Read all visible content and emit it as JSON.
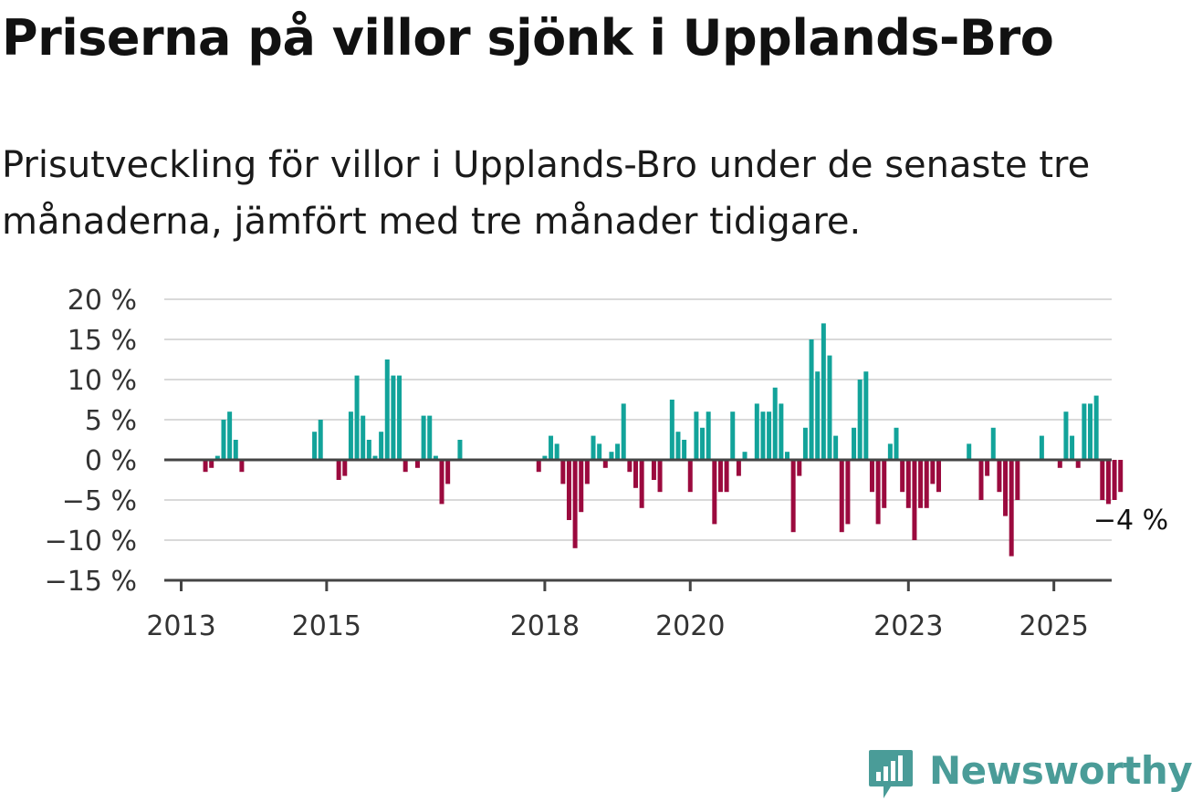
{
  "title": "Priserna på villor sjönk i Upplands-Bro",
  "subtitle": "Prisutveckling för villor i Upplands-Bro under de senaste tre månaderna, jämfört med tre månader tidigare.",
  "brand": {
    "name": "Newsworthy",
    "icon": "newsworthy-logo-icon"
  },
  "colors": {
    "positive": "#12a39a",
    "negative": "#9b0a3e",
    "grid": "#d9d9d9",
    "axis": "#444444"
  },
  "chart_data": {
    "type": "bar",
    "x_start": "2013-01",
    "frequency": "monthly",
    "ylim": [
      -15,
      20
    ],
    "yticks": [
      -15,
      -10,
      -5,
      0,
      5,
      10,
      15,
      20
    ],
    "ytick_labels": [
      "−15 %",
      "−10 %",
      "−5 %",
      "0 %",
      "5 %",
      "10 %",
      "15 %",
      "20 %"
    ],
    "xtick_labels": [
      {
        "x": "2013-01",
        "label": "2013"
      },
      {
        "x": "2015-01",
        "label": "2015"
      },
      {
        "x": "2018-01",
        "label": "2018"
      },
      {
        "x": "2020-01",
        "label": "2020"
      },
      {
        "x": "2023-01",
        "label": "2023"
      },
      {
        "x": "2025-01",
        "label": "2025"
      }
    ],
    "grid": true,
    "legend": "none",
    "end_label": "−4 %",
    "values": [
      null,
      null,
      null,
      null,
      -1.5,
      -1,
      0.5,
      5,
      6,
      2.5,
      -1.5,
      null,
      null,
      null,
      null,
      null,
      null,
      null,
      null,
      null,
      null,
      null,
      3.5,
      5,
      null,
      null,
      -2.5,
      -2,
      6,
      10.5,
      5.5,
      2.5,
      0.5,
      3.5,
      12.5,
      10.5,
      10.5,
      -1.5,
      null,
      -1,
      5.5,
      5.5,
      0.5,
      -5.5,
      -3,
      null,
      2.5,
      null,
      null,
      null,
      null,
      null,
      null,
      null,
      null,
      null,
      null,
      null,
      null,
      -1.5,
      0.5,
      3,
      2,
      -3,
      -7.5,
      -11,
      -6.5,
      -3,
      3,
      2,
      -1,
      1,
      2,
      7,
      -1.5,
      -3.5,
      -6,
      null,
      -2.5,
      -4,
      null,
      7.5,
      3.5,
      2.5,
      -4,
      6,
      4,
      6,
      -8,
      -4,
      -4,
      6,
      -2,
      1,
      null,
      7,
      6,
      6,
      9,
      7,
      1,
      -9,
      -2,
      4,
      15,
      11,
      17,
      13,
      3,
      -9,
      -8,
      4,
      10,
      11,
      -4,
      -8,
      -6,
      2,
      4,
      -4,
      -6,
      -10,
      -6,
      -6,
      -3,
      -4,
      null,
      null,
      null,
      null,
      2,
      null,
      -5,
      -2,
      4,
      -4,
      -7,
      -12,
      -5,
      null,
      null,
      null,
      3,
      null,
      null,
      -1,
      6,
      3,
      -1,
      7,
      7,
      8,
      -5,
      -5.5,
      -5,
      -4
    ]
  }
}
